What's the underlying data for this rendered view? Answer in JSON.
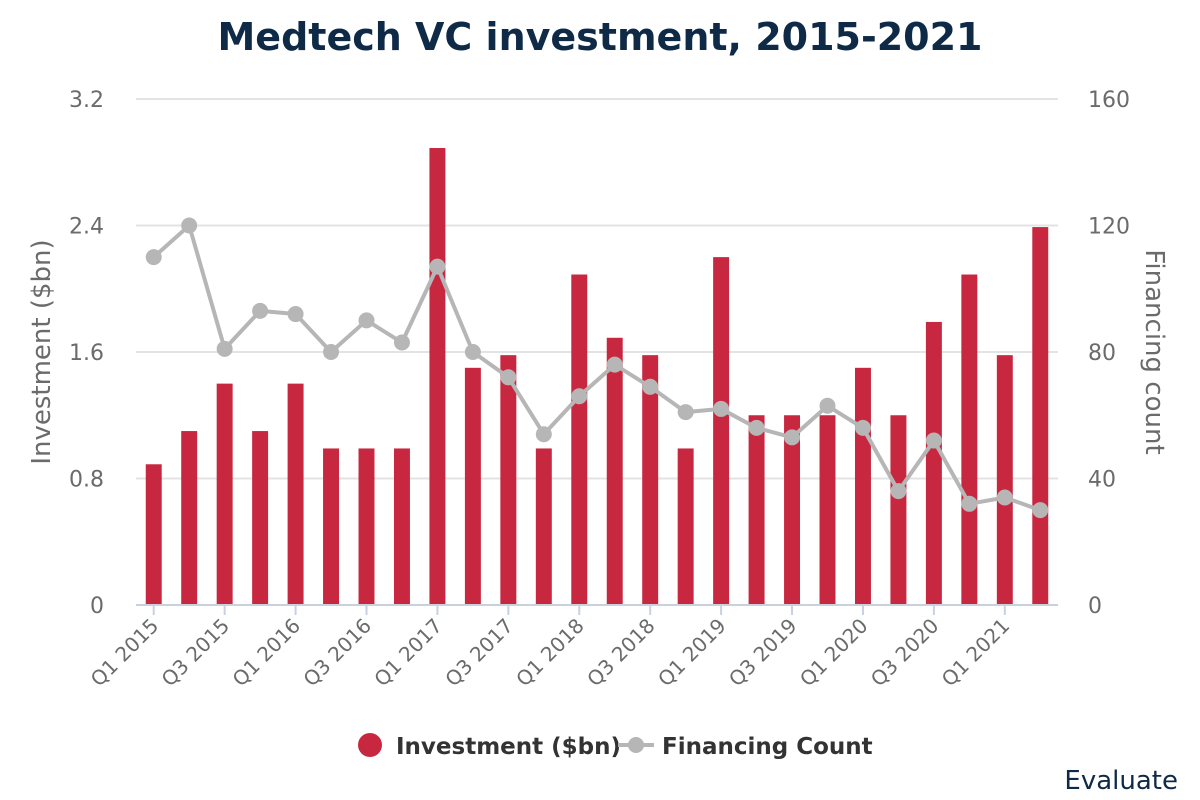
{
  "chart_data": {
    "type": "bar+line",
    "title": "Medtech VC investment, 2015-2021",
    "source": "Evaluate",
    "ylabel_left": "Investment ($bn)",
    "ylabel_right": "Financing count",
    "ylim_left": [
      0,
      3.2
    ],
    "ylim_right": [
      0,
      160
    ],
    "yticks_left": [
      "0",
      "0.8",
      "1.6",
      "2.4",
      "3.2"
    ],
    "yticks_right": [
      "0",
      "40",
      "80",
      "120",
      "160"
    ],
    "grid": true,
    "legend_position": "bottom",
    "quarters": [
      "Q1 2015",
      "Q2 2015",
      "Q3 2015",
      "Q4 2015",
      "Q1 2016",
      "Q2 2016",
      "Q3 2016",
      "Q4 2016",
      "Q1 2017",
      "Q2 2017",
      "Q3 2017",
      "Q4 2017",
      "Q1 2018",
      "Q2 2018",
      "Q3 2018",
      "Q4 2018",
      "Q1 2019",
      "Q2 2019",
      "Q3 2019",
      "Q4 2019",
      "Q1 2020",
      "Q2 2020",
      "Q3 2020",
      "Q4 2020",
      "Q1 2021",
      "Q2 2021"
    ],
    "tick_labels": [
      "Q1 2015",
      "Q3 2015",
      "Q1 2016",
      "Q3 2016",
      "Q1 2017",
      "Q3 2017",
      "Q1 2018",
      "Q3 2018",
      "Q1 2019",
      "Q3 2019",
      "Q1 2020",
      "Q3 2020",
      "Q1 2021"
    ],
    "series": [
      {
        "name": "Investment ($bn)",
        "kind": "bar",
        "axis": "left",
        "color": "#c7283f",
        "values": [
          0.89,
          1.1,
          1.4,
          1.1,
          1.4,
          0.99,
          0.99,
          0.99,
          2.89,
          1.5,
          1.58,
          0.99,
          2.09,
          1.69,
          1.58,
          0.99,
          2.2,
          1.2,
          1.2,
          1.2,
          1.5,
          1.2,
          1.79,
          2.09,
          1.58,
          2.39
        ]
      },
      {
        "name": "Financing Count",
        "kind": "line",
        "axis": "right",
        "color": "#b6b6b6",
        "values": [
          110,
          120,
          81,
          93,
          92,
          80,
          90,
          83,
          107,
          80,
          72,
          54,
          66,
          76,
          69,
          61,
          62,
          56,
          53,
          63,
          56,
          36,
          52,
          32,
          34,
          30
        ]
      }
    ]
  }
}
